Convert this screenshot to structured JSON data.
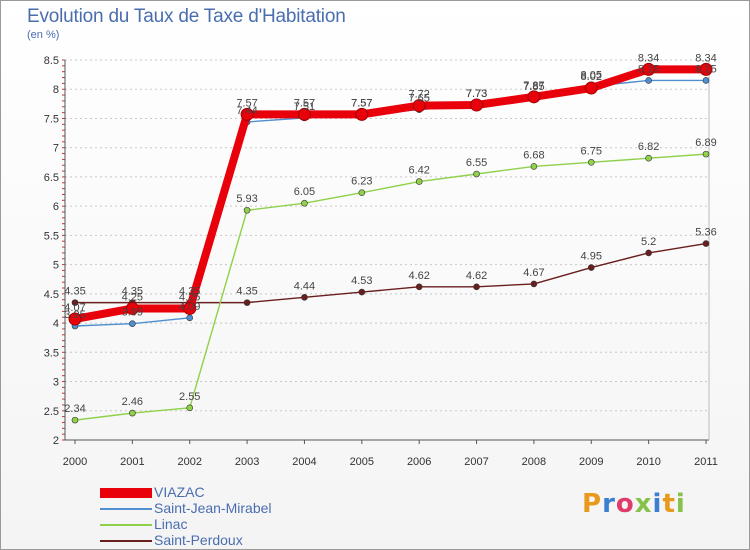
{
  "header": {
    "title": "Evolution du Taux de Taxe d'Habitation",
    "subtitle": "(en %)"
  },
  "logo": {
    "letters": [
      "P",
      "r",
      "o",
      "x",
      "i",
      "t",
      "i"
    ]
  },
  "chart_data": {
    "type": "line",
    "title": "Evolution du Taux de Taxe d'Habitation",
    "subtitle": "(en %)",
    "xlabel": "",
    "ylabel": "",
    "x": [
      "2000",
      "2001",
      "2002",
      "2003",
      "2004",
      "2005",
      "2006",
      "2007",
      "2008",
      "2009",
      "2010",
      "2011"
    ],
    "ylim": [
      2,
      8.5
    ],
    "yticks": [
      "2",
      "2.5",
      "3",
      "3.5",
      "4",
      "4.5",
      "5",
      "5.5",
      "6",
      "6.5",
      "7",
      "7.5",
      "8",
      "8.5"
    ],
    "grid": "horizontal dashed",
    "legend_position": "bottom-left",
    "series": [
      {
        "name": "VIAZAC",
        "color": "#e8000b",
        "values": [
          4.07,
          4.25,
          4.25,
          7.57,
          7.57,
          7.57,
          7.72,
          7.73,
          7.87,
          8.02,
          8.34,
          8.34
        ],
        "labels": [
          "4.07",
          "4.25",
          "4.25",
          "7.57",
          "7.57",
          "7.57",
          "7.72",
          "7.73",
          "7.87",
          "8.02",
          "8.34",
          "8.34"
        ]
      },
      {
        "name": "Saint-Jean-Mirabel",
        "color": "#4f8fd0",
        "values": [
          3.95,
          3.99,
          4.09,
          7.44,
          7.51,
          7.57,
          7.65,
          7.73,
          7.85,
          8.05,
          8.15,
          8.15
        ],
        "labels": [
          "3.95",
          "3.99",
          "4.09",
          "7.44",
          "7.51",
          "7.57",
          "7.65",
          "7.73",
          "7.85",
          "8.05",
          "8.15",
          "8.15"
        ]
      },
      {
        "name": "Linac",
        "color": "#8fd14a",
        "values": [
          2.34,
          2.46,
          2.55,
          5.93,
          6.05,
          6.23,
          6.42,
          6.55,
          6.68,
          6.75,
          6.82,
          6.89
        ],
        "labels": [
          "2.34",
          "2.46",
          "2.55",
          "5.93",
          "6.05",
          "6.23",
          "6.42",
          "6.55",
          "6.68",
          "6.75",
          "6.82",
          "6.89"
        ]
      },
      {
        "name": "Saint-Perdoux",
        "color": "#6a1e1e",
        "values": [
          4.35,
          4.35,
          4.35,
          4.35,
          4.44,
          4.53,
          4.62,
          4.62,
          4.67,
          4.95,
          5.2,
          5.36
        ],
        "labels": [
          "4.35",
          "4.35",
          "4.35",
          "4.35",
          "4.44",
          "4.53",
          "4.62",
          "4.62",
          "4.67",
          "4.95",
          "5.2",
          "5.36"
        ]
      }
    ]
  }
}
